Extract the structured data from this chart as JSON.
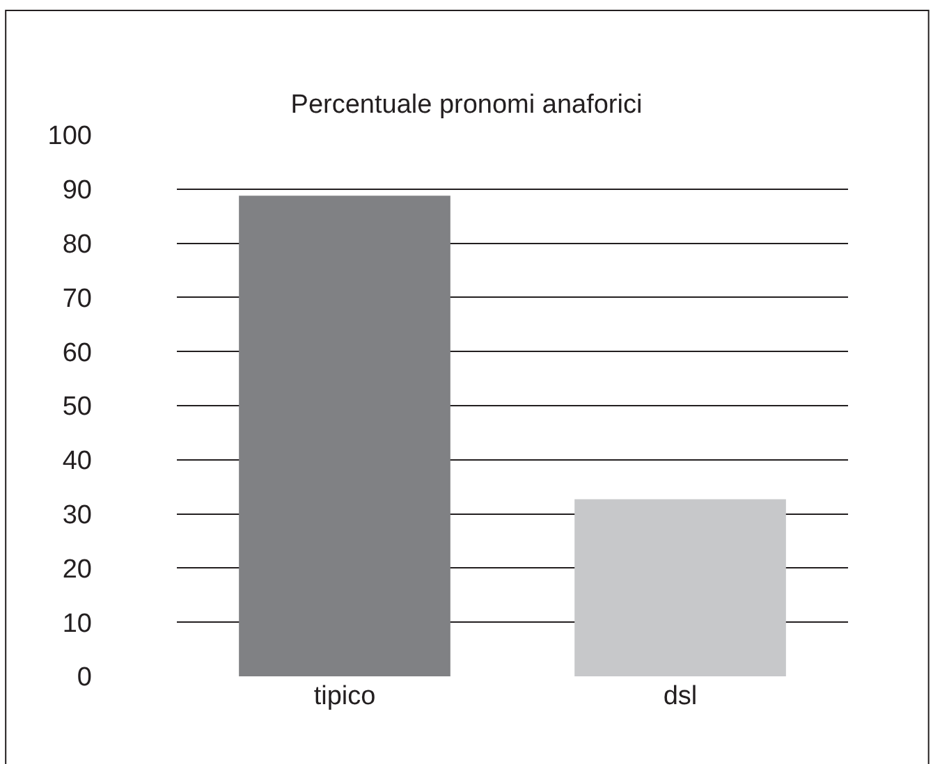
{
  "chart_data": {
    "type": "bar",
    "title": "Percentuale pronomi anaforici",
    "categories": [
      "tipico",
      "dsl"
    ],
    "values": [
      88.8,
      32.7
    ],
    "colors": [
      "#808184",
      "#c7c8ca"
    ],
    "ylim": [
      0,
      100
    ],
    "yticks": [
      0,
      10,
      20,
      30,
      40,
      50,
      60,
      70,
      80,
      90,
      100
    ],
    "grid": "y",
    "legend": false
  }
}
